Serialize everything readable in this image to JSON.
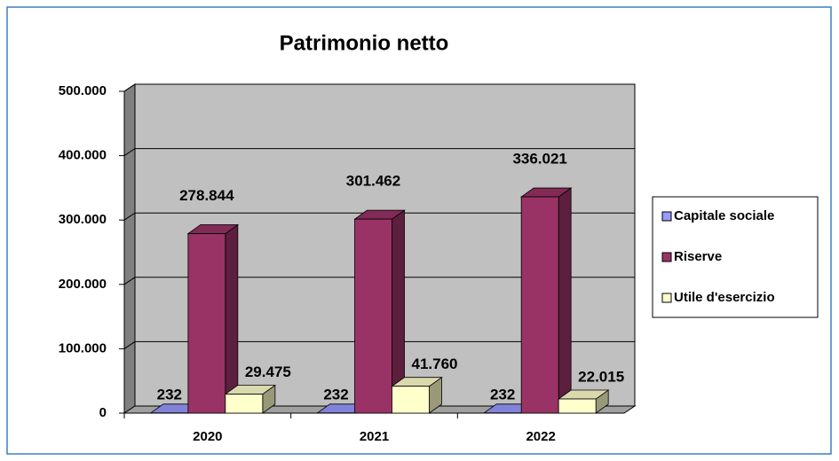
{
  "chart_data": {
    "type": "bar3d",
    "title": "Patrimonio netto",
    "categories": [
      "2020",
      "2021",
      "2022"
    ],
    "series": [
      {
        "name": "Capitale sociale",
        "color": "#9999ff",
        "values": [
          232,
          232,
          232
        ],
        "value_labels": [
          "232",
          "232",
          "232"
        ]
      },
      {
        "name": "Riserve",
        "color": "#993366",
        "values": [
          278844,
          301462,
          336021
        ],
        "value_labels": [
          "278.844",
          "301.462",
          "336.021"
        ]
      },
      {
        "name": "Utile d'esercizio",
        "color": "#ffffcc",
        "values": [
          29475,
          41760,
          22015
        ],
        "value_labels": [
          "29.475",
          "41.760",
          "22.015"
        ]
      }
    ],
    "ylim": [
      0,
      500000
    ],
    "yticks": [
      0,
      {
        "value": 100000,
        "label": "100.000"
      },
      {
        "value": 200000,
        "label": "200.000"
      },
      {
        "value": 300000,
        "label": "300.000"
      },
      {
        "value": 400000,
        "label": "400.000"
      },
      {
        "value": 500000,
        "label": "500.000"
      }
    ],
    "grid": true,
    "legend": "right"
  }
}
